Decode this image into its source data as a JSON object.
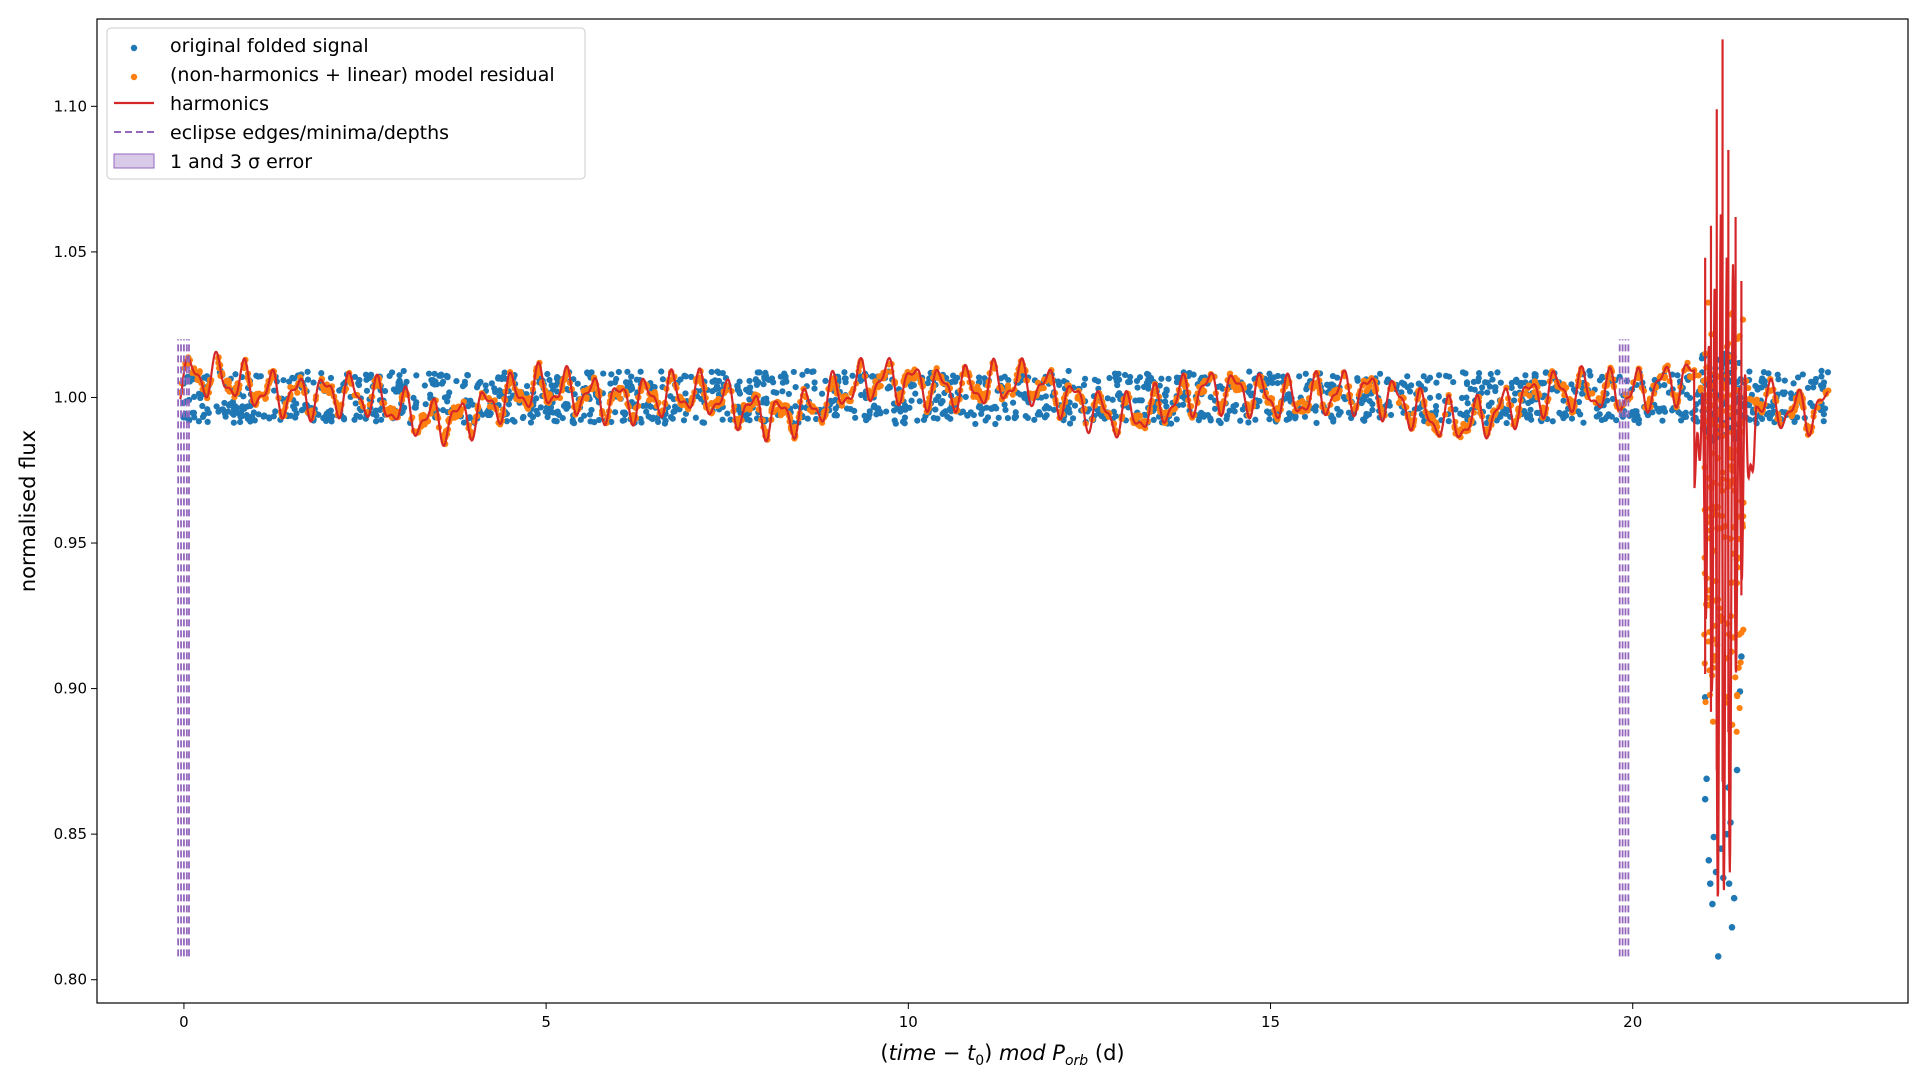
{
  "chart_data": {
    "type": "scatter",
    "xlabel": "(time − t₀) mod P_orb (d)",
    "ylabel": "normalised flux",
    "xlim": [
      -1.2,
      23.8
    ],
    "ylim": [
      0.792,
      1.13
    ],
    "xticks": [
      0,
      5,
      10,
      15,
      20
    ],
    "yticks": [
      0.8,
      0.85,
      0.9,
      0.95,
      1.0,
      1.05,
      1.1
    ],
    "ytick_labels": [
      "0.80",
      "0.85",
      "0.90",
      "0.95",
      "1.00",
      "1.05",
      "1.10"
    ],
    "grid": false,
    "legend_position": "top-left",
    "colors": {
      "original": "#1f77b4",
      "residual": "#ff7f0e",
      "harmonics": "#d62728",
      "eclipse": "#9467bd",
      "error_fill": "#c9b3e0"
    },
    "legend": [
      {
        "key": "original",
        "label": "original folded signal",
        "marker": "dot"
      },
      {
        "key": "residual",
        "label": "(non-harmonics + linear) model residual",
        "marker": "dot"
      },
      {
        "key": "harmonics",
        "label": "harmonics",
        "marker": "line"
      },
      {
        "key": "eclipse",
        "label": "eclipse edges/minima/depths",
        "marker": "dashed"
      },
      {
        "key": "error_fill",
        "label": "1 and 3 σ error",
        "marker": "patch"
      }
    ],
    "series": [
      {
        "name": "original folded signal",
        "baseline": 1.0,
        "scatter_amplitude": 0.009,
        "eclipse_points": [
          [
            21.0,
            0.862
          ],
          [
            21.02,
            0.869
          ],
          [
            21.05,
            0.841
          ],
          [
            21.07,
            0.833
          ],
          [
            21.1,
            0.826
          ],
          [
            21.12,
            0.849
          ],
          [
            21.15,
            0.837
          ],
          [
            21.18,
            0.808
          ],
          [
            21.22,
            0.845
          ],
          [
            21.25,
            0.835
          ],
          [
            21.3,
            0.85
          ],
          [
            21.33,
            0.833
          ],
          [
            21.35,
            0.854
          ],
          [
            21.37,
            0.818
          ],
          [
            21.4,
            0.828
          ],
          [
            21.44,
            0.872
          ],
          [
            21.48,
            0.899
          ],
          [
            21.5,
            0.911
          ],
          [
            21.0,
            0.897
          ],
          [
            21.32,
            0.866
          ]
        ]
      },
      {
        "name": "(non-harmonics + linear) model residual",
        "baseline": 1.0,
        "scatter_amplitude": 0.007
      },
      {
        "name": "harmonics",
        "baseline": 1.0,
        "spikes": [
          [
            21.0,
            1.048,
            0.905
          ],
          [
            21.08,
            1.059,
            0.892
          ],
          [
            21.16,
            1.099,
            0.872
          ],
          [
            21.24,
            1.123,
            0.868
          ],
          [
            21.32,
            1.085,
            0.885
          ],
          [
            21.42,
            1.062,
            0.913
          ],
          [
            21.5,
            1.04,
            0.932
          ]
        ]
      }
    ],
    "eclipse_lines": {
      "x": [
        -0.08,
        -0.04,
        0.0,
        0.04,
        0.07,
        19.82,
        19.86,
        19.9,
        19.94
      ],
      "ymin": 0.808,
      "ymax": 1.02
    }
  }
}
